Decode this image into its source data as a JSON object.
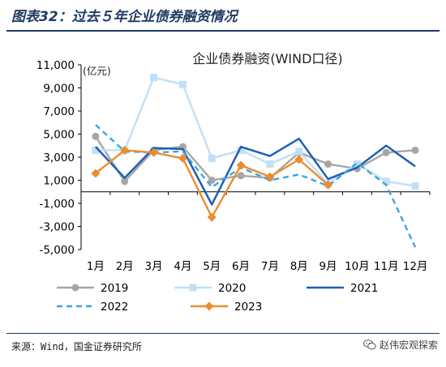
{
  "figure": {
    "title": "图表32：过去５年企业债券融资情况",
    "source": "来源：Wind，国金证券研究所",
    "watermark": "赵伟宏观探索",
    "watermark_icon": "wechat-icon"
  },
  "chart_data": {
    "type": "line",
    "title": "企业债券融资(WIND口径)",
    "ylabel": "(亿元)",
    "xlabel": "",
    "categories": [
      "1月",
      "2月",
      "3月",
      "4月",
      "5月",
      "6月",
      "7月",
      "8月",
      "9月",
      "10月",
      "11月",
      "12月"
    ],
    "ylim": [
      -5000,
      11000
    ],
    "yticks": [
      -5000,
      -3000,
      -1000,
      1000,
      3000,
      5000,
      7000,
      9000,
      11000
    ],
    "ytick_labels": [
      "-5,000",
      "-3,000",
      "-1,000",
      "1,000",
      "3,000",
      "5,000",
      "7,000",
      "9,000",
      "11,000"
    ],
    "grid": false,
    "legend": "bottom",
    "series": [
      {
        "name": "2019",
        "color": "#a6a6a6",
        "style": "solid",
        "marker": "circle",
        "values": [
          4800,
          900,
          3600,
          3900,
          1000,
          1400,
          1200,
          3400,
          2400,
          2000,
          3400,
          3600
        ]
      },
      {
        "name": "2020",
        "color": "#bfe0f7",
        "style": "solid",
        "marker": "square",
        "values": [
          3600,
          3600,
          9900,
          9300,
          2900,
          3600,
          2400,
          3500,
          700,
          2400,
          900,
          500
        ]
      },
      {
        "name": "2021",
        "color": "#1f5fb5",
        "style": "solid",
        "marker": "none",
        "values": [
          3900,
          1200,
          3800,
          3700,
          -1100,
          3900,
          3100,
          4600,
          1100,
          2100,
          4000,
          2200
        ]
      },
      {
        "name": "2022",
        "color": "#3fa3de",
        "style": "dashed",
        "marker": "none",
        "values": [
          5800,
          3500,
          3400,
          3500,
          400,
          2100,
          1000,
          1500,
          500,
          2500,
          600,
          -4800
        ]
      },
      {
        "name": "2023",
        "color": "#ed8b2f",
        "style": "solid",
        "marker": "diamond",
        "values": [
          1600,
          3600,
          3400,
          2900,
          -2200,
          2300,
          1300,
          2800,
          600,
          null,
          null,
          null
        ]
      }
    ]
  }
}
